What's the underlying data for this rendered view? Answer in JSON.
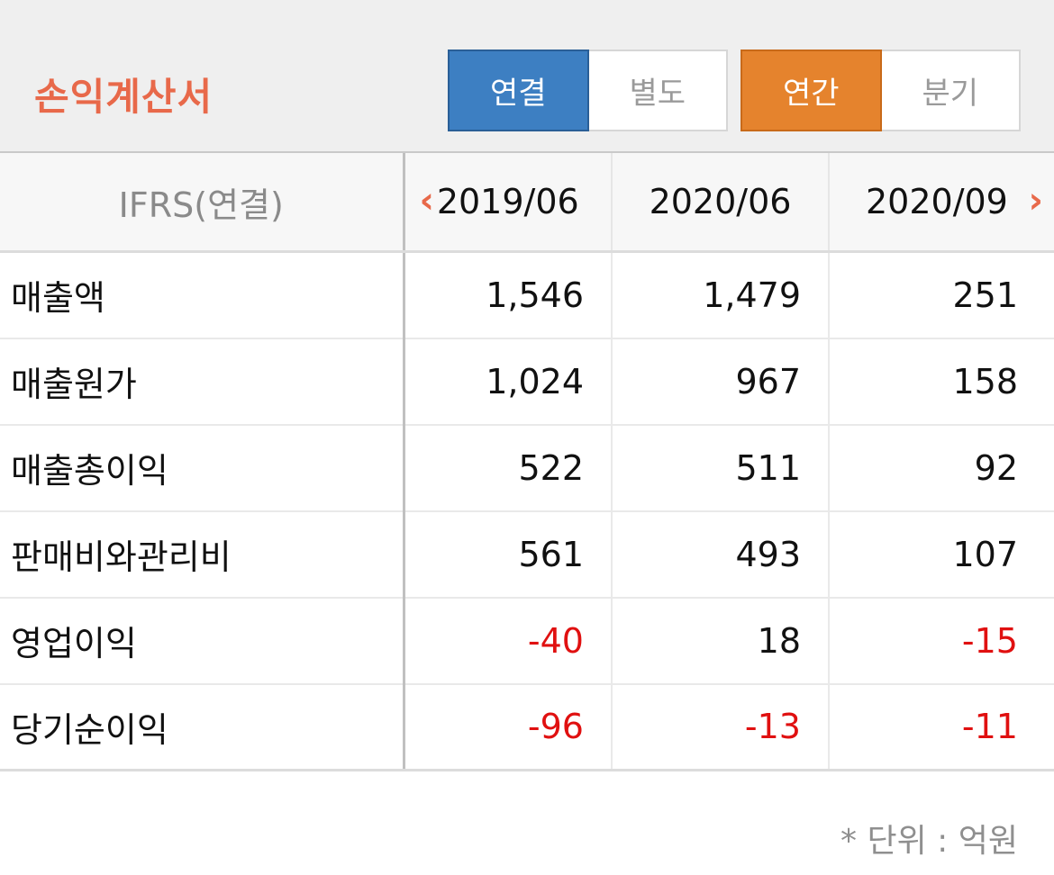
{
  "header": {
    "title": "손익계산서",
    "scope_toggle": {
      "options": [
        "연결",
        "별도"
      ],
      "selected": "연결"
    },
    "period_toggle": {
      "options": [
        "연간",
        "분기"
      ],
      "selected": "연간"
    }
  },
  "table": {
    "label_header": "IFRS(연결)",
    "columns": [
      "2019/06",
      "2020/06",
      "2020/09"
    ],
    "prev_icon": "chevron-left-icon",
    "next_icon": "chevron-right-icon",
    "rows": [
      {
        "label": "매출액",
        "values": [
          "1,546",
          "1,479",
          "251"
        ]
      },
      {
        "label": "매출원가",
        "values": [
          "1,024",
          "967",
          "158"
        ]
      },
      {
        "label": "매출총이익",
        "values": [
          "522",
          "511",
          "92"
        ]
      },
      {
        "label": "판매비와관리비",
        "values": [
          "561",
          "493",
          "107"
        ]
      },
      {
        "label": "영업이익",
        "values": [
          "-40",
          "18",
          "-15"
        ]
      },
      {
        "label": "당기순이익",
        "values": [
          "-96",
          "-13",
          "-11"
        ]
      }
    ]
  },
  "footer": {
    "unit_note": "* 단위 : 억원"
  },
  "colors": {
    "title": "#e8694a",
    "scope_active": "#3d7fc2",
    "period_active": "#e5832d",
    "negative": "#e01010"
  }
}
